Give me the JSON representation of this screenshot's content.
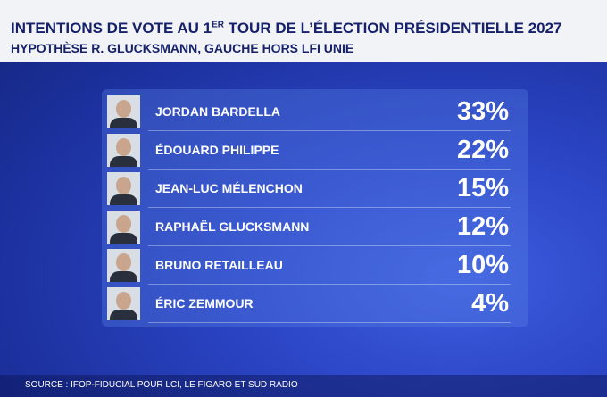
{
  "header": {
    "title_start": "INTENTIONS DE VOTE AU 1",
    "title_sup": "ER",
    "title_end": " TOUR DE L’ÉLECTION PRÉSIDENTIELLE 2027",
    "subtitle": "HYPOTHÈSE R. GLUCKSMANN, GAUCHE HORS LFI UNIE"
  },
  "table": {
    "rows": [
      [
        "JORDAN BARDELLA",
        "33%"
      ],
      [
        "ÉDOUARD PHILIPPE",
        "22%"
      ],
      [
        "JEAN-LUC MÉLENCHON",
        "15%"
      ],
      [
        "RAPHAËL GLUCKSMANN",
        "12%"
      ],
      [
        "BRUNO RETAILLEAU",
        "10%"
      ],
      [
        "ÉRIC ZEMMOUR",
        "4%"
      ]
    ]
  },
  "footer": {
    "source": "SOURCE : IFOP-FIDUCIAL POUR LCI, LE FIGARO ET SUD RADIO"
  }
}
